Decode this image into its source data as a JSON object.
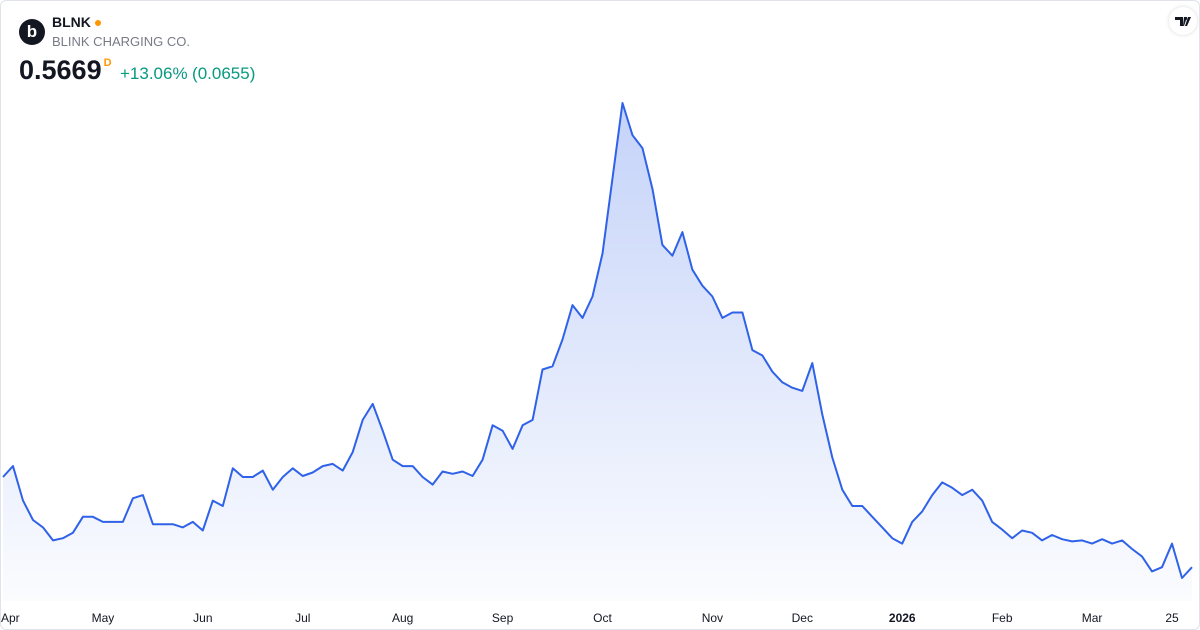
{
  "header": {
    "logo": "b",
    "symbol": "BLNK",
    "company": "BLINK CHARGING CO.",
    "last_price": 0.5669,
    "interval": "D",
    "change": {
      "value": 13.06,
      "label": "+13.06%"
    },
    "change_abs": {
      "value": 0.0655,
      "label": "(0.0655)"
    }
  },
  "chart_data": {
    "type": "area",
    "color": "#2f62e8",
    "categories": [
      "Apr",
      null,
      null,
      null,
      null,
      null,
      null,
      null,
      null,
      null,
      "May",
      null,
      null,
      null,
      null,
      null,
      null,
      null,
      null,
      null,
      "Jun",
      null,
      null,
      null,
      null,
      null,
      null,
      null,
      null,
      null,
      "Jul",
      null,
      null,
      null,
      null,
      null,
      null,
      null,
      null,
      null,
      "Aug",
      null,
      null,
      null,
      null,
      null,
      null,
      null,
      null,
      null,
      "Sep",
      null,
      null,
      null,
      null,
      null,
      null,
      null,
      null,
      null,
      "Oct",
      null,
      null,
      null,
      null,
      null,
      null,
      null,
      null,
      null,
      null,
      "Nov",
      null,
      null,
      null,
      null,
      null,
      null,
      null,
      null,
      "Dec",
      null,
      null,
      null,
      null,
      null,
      null,
      null,
      null,
      null,
      "2026",
      null,
      null,
      null,
      null,
      null,
      null,
      null,
      null,
      null,
      "Feb",
      null,
      null,
      null,
      null,
      null,
      null,
      null,
      null,
      "Mar",
      null,
      null,
      null,
      null,
      null,
      null,
      null,
      "25",
      null,
      null
    ],
    "values": [
      0.934,
      0.978,
      0.838,
      0.759,
      0.729,
      0.676,
      0.685,
      0.707,
      0.772,
      0.772,
      0.751,
      0.751,
      0.751,
      0.847,
      0.86,
      0.742,
      0.742,
      0.742,
      0.729,
      0.751,
      0.716,
      0.838,
      0.816,
      0.969,
      0.934,
      0.934,
      0.96,
      0.882,
      0.934,
      0.969,
      0.938,
      0.952,
      0.978,
      0.987,
      0.96,
      1.035,
      1.166,
      1.231,
      1.122,
      1.004,
      0.978,
      0.978,
      0.934,
      0.903,
      0.956,
      0.947,
      0.956,
      0.938,
      1.004,
      1.144,
      1.122,
      1.048,
      1.144,
      1.166,
      1.371,
      1.384,
      1.493,
      1.633,
      1.581,
      1.668,
      1.843,
      2.149,
      2.455,
      2.324,
      2.271,
      2.105,
      1.878,
      1.834,
      1.93,
      1.777,
      1.712,
      1.668,
      1.581,
      1.603,
      1.603,
      1.45,
      1.428,
      1.362,
      1.319,
      1.297,
      1.284,
      1.397,
      1.188,
      1.013,
      0.882,
      0.816,
      0.816,
      0.772,
      0.729,
      0.685,
      0.663,
      0.751,
      0.794,
      0.86,
      0.912,
      0.89,
      0.86,
      0.882,
      0.838,
      0.751,
      0.72,
      0.685,
      0.716,
      0.707,
      0.676,
      0.698,
      0.681,
      0.672,
      0.676,
      0.663,
      0.681,
      0.663,
      0.676,
      0.641,
      0.611,
      0.55,
      0.567,
      0.663,
      0.523,
      0.5669
    ]
  }
}
